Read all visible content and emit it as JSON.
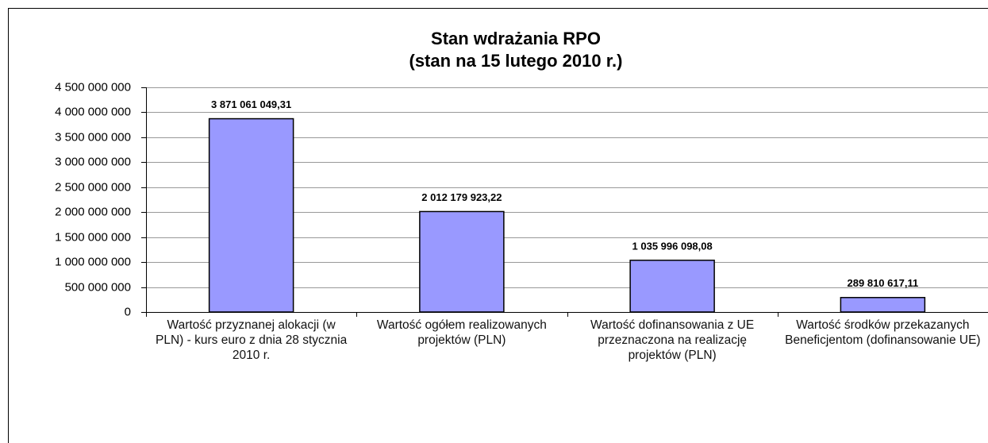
{
  "chart_data": {
    "type": "bar",
    "title": "Stan wdrażania RPO",
    "subtitle": "(stan na 15 lutego 2010 r.)",
    "categories": [
      "Wartość przyznanej alokacji (w PLN) - kurs euro z dnia 28 stycznia 2010 r.",
      "Wartość ogółem realizowanych projektów (PLN)",
      "Wartość dofinansowania z UE przeznaczona na realizację projektów (PLN)",
      "Wartość środków przekazanych Beneficjentom (dofinansowanie UE)"
    ],
    "values": [
      3871061049.31,
      2012179923.22,
      1035996098.08,
      289810617.11
    ],
    "value_labels": [
      "3 871 061 049,31",
      "2 012 179 923,22",
      "1 035 996 098,08",
      "289 810 617,11"
    ],
    "color": "#9999ff",
    "ylim": [
      0,
      4500000000
    ],
    "yticks": [
      0,
      {
        "value": 500000000,
        "label": "500 000 000"
      },
      {
        "value": 1000000000,
        "label": "1 000 000 000"
      },
      {
        "value": 1500000000,
        "label": "1 500 000 000"
      },
      {
        "value": 2000000000,
        "label": "2 000 000 000"
      },
      {
        "value": 2500000000,
        "label": "2 500 000 000"
      },
      {
        "value": 3000000000,
        "label": "3 000 000 000"
      },
      {
        "value": 3500000000,
        "label": "3 500 000 000"
      },
      {
        "value": 4000000000,
        "label": "4 000 000 000"
      },
      {
        "value": 4500000000,
        "label": "4 500 000 000"
      }
    ],
    "grid": true
  }
}
